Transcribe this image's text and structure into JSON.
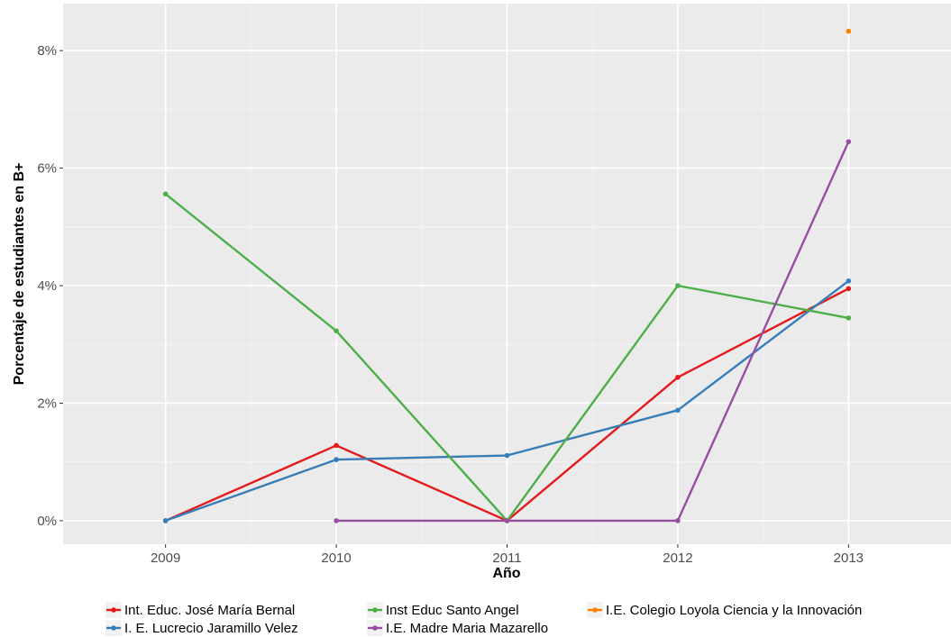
{
  "chart_data": {
    "type": "line",
    "x": [
      2009,
      2010,
      2011,
      2012,
      2013
    ],
    "xlabel": "Año",
    "ylabel": "Porcentaje de estudiantes en B+",
    "ylim": [
      -0.4,
      8.8
    ],
    "xlim": [
      2008.4,
      2013.6
    ],
    "yticks": [
      0,
      2,
      4,
      6,
      8
    ],
    "ytick_labels": [
      "0%",
      "2%",
      "4%",
      "6%",
      "8%"
    ],
    "xtick_labels": [
      "2009",
      "2010",
      "2011",
      "2012",
      "2013"
    ],
    "grid": true,
    "legend_position": "bottom",
    "background": "#ebebeb",
    "series": [
      {
        "name": "Int. Educ. José María Bernal",
        "color": "#e41a1c",
        "values": [
          0.0,
          1.28,
          0.0,
          2.44,
          3.95
        ]
      },
      {
        "name": "I. E. Lucrecio Jaramillo Velez",
        "color": "#377eb8",
        "values": [
          0.0,
          1.04,
          1.11,
          1.88,
          4.08
        ]
      },
      {
        "name": "Inst Educ Santo Angel",
        "color": "#4daf4a",
        "values": [
          5.56,
          3.23,
          0.0,
          4.0,
          3.45
        ]
      },
      {
        "name": "I.E. Madre Maria Mazarello",
        "color": "#984ea3",
        "values": [
          null,
          0.0,
          0.0,
          0.0,
          6.45
        ]
      },
      {
        "name": "I.E. Colegio Loyola Ciencia y la Innovación",
        "color": "#ff7f00",
        "values": [
          null,
          null,
          null,
          null,
          8.33
        ]
      }
    ]
  }
}
